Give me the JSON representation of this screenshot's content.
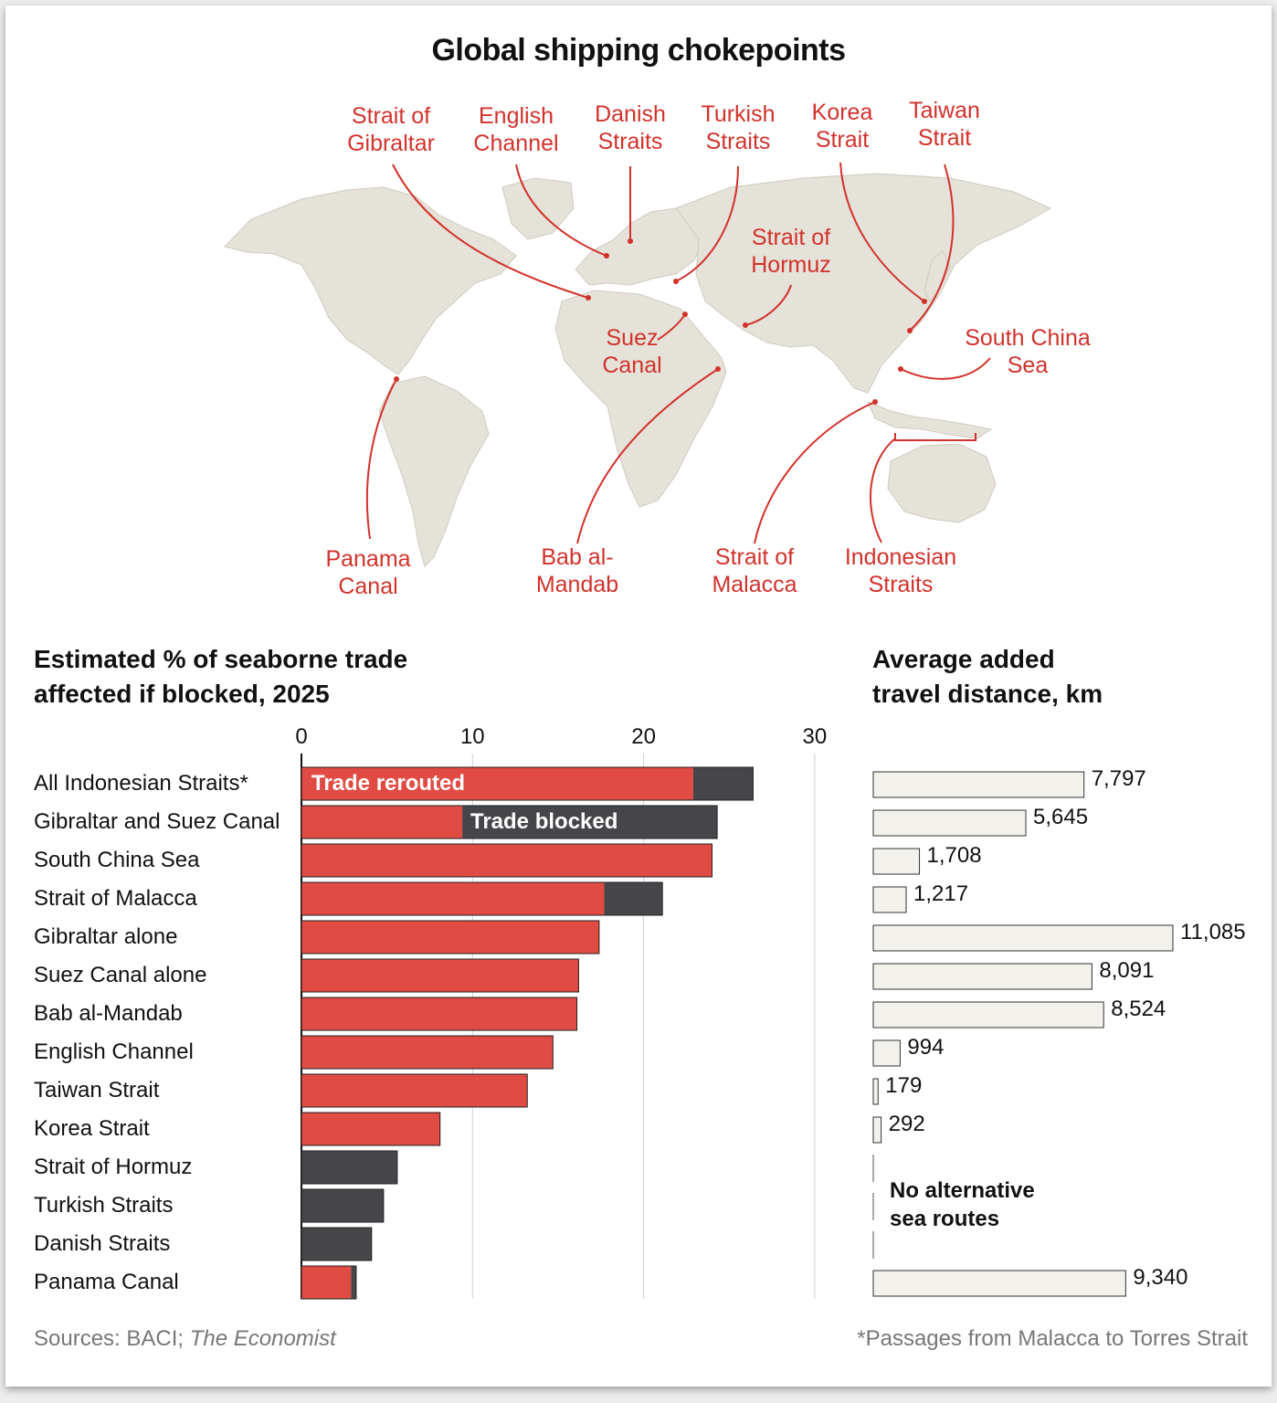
{
  "title": "Global shipping chokepoints",
  "colors": {
    "red": "#d2322b",
    "bar_red": "#e04b43",
    "dark": "#46464a",
    "land": "#e5e2d9",
    "dist_fill": "#f3f1ec"
  },
  "map_labels": [
    {
      "id": "gibraltar",
      "lines": [
        "Strait of",
        "Gibraltar"
      ]
    },
    {
      "id": "english",
      "lines": [
        "English",
        "Channel"
      ]
    },
    {
      "id": "danish",
      "lines": [
        "Danish",
        "Straits"
      ]
    },
    {
      "id": "turkish",
      "lines": [
        "Turkish",
        "Straits"
      ]
    },
    {
      "id": "korea",
      "lines": [
        "Korea",
        "Strait"
      ]
    },
    {
      "id": "taiwan",
      "lines": [
        "Taiwan",
        "Strait"
      ]
    },
    {
      "id": "hormuz",
      "lines": [
        "Strait of",
        "Hormuz"
      ]
    },
    {
      "id": "suez",
      "lines": [
        "Suez",
        "Canal"
      ]
    },
    {
      "id": "scs",
      "lines": [
        "South China",
        "Sea"
      ]
    },
    {
      "id": "panama",
      "lines": [
        "Panama",
        "Canal"
      ]
    },
    {
      "id": "bab",
      "lines": [
        "Bab al-",
        "Mandab"
      ]
    },
    {
      "id": "malacca",
      "lines": [
        "Strait of",
        "Malacca"
      ]
    },
    {
      "id": "indonesian",
      "lines": [
        "Indonesian",
        "Straits"
      ]
    }
  ],
  "left_title": [
    "Estimated % of seaborne trade",
    "affected if blocked, 2025"
  ],
  "right_title": [
    "Average added",
    "travel distance, km"
  ],
  "legend_rerouted": "Trade rerouted",
  "legend_blocked": "Trade blocked",
  "no_alternative": [
    "No alternative",
    "sea routes"
  ],
  "sources_prefix": "Sources: BACI; ",
  "sources_italic": "The Economist",
  "footnote": "*Passages from Malacca to Torres Strait",
  "chart_data": {
    "type": "bar",
    "orientation": "horizontal",
    "stacked": true,
    "title": "Estimated % of seaborne trade affected if blocked, 2025",
    "xlim": [
      0,
      30
    ],
    "xticks": [
      0,
      10,
      20,
      30
    ],
    "categories": [
      "All Indonesian Straits*",
      "Gibraltar and Suez Canal",
      "South China Sea",
      "Strait of Malacca",
      "Gibraltar alone",
      "Suez Canal alone",
      "Bab al-Mandab",
      "English Channel",
      "Taiwan Strait",
      "Korea Strait",
      "Strait of Hormuz",
      "Turkish Straits",
      "Danish Straits",
      "Panama Canal"
    ],
    "series": [
      {
        "name": "Trade rerouted",
        "color": "#e04b43",
        "values": [
          22.9,
          9.4,
          24.0,
          17.7,
          17.4,
          16.2,
          16.1,
          14.7,
          13.2,
          8.1,
          0,
          0,
          0,
          2.9
        ]
      },
      {
        "name": "Trade blocked",
        "color": "#46464a",
        "values": [
          3.5,
          14.9,
          0,
          3.4,
          0,
          0,
          0,
          0,
          0,
          0,
          5.6,
          4.8,
          4.1,
          0.3
        ]
      }
    ],
    "distance": {
      "title": "Average added travel distance, km",
      "unit": "km",
      "values": [
        7797,
        5645,
        1708,
        1217,
        11085,
        8091,
        8524,
        994,
        179,
        292,
        null,
        null,
        null,
        9340
      ],
      "labels": [
        "7,797",
        "5,645",
        "1,708",
        "1,217",
        "11,085",
        "8,091",
        "8,524",
        "994",
        "179",
        "292",
        "",
        "",
        "",
        "9,340"
      ]
    }
  }
}
